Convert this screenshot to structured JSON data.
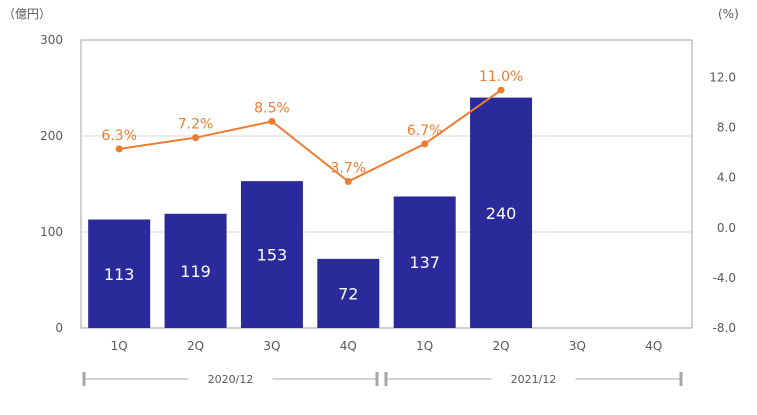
{
  "chart_data": {
    "type": "bar",
    "categories": [
      "1Q",
      "2Q",
      "3Q",
      "4Q",
      "1Q",
      "2Q",
      "3Q",
      "4Q"
    ],
    "groups": [
      {
        "label": "2020/12",
        "categories": [
          "1Q",
          "2Q",
          "3Q",
          "4Q"
        ]
      },
      {
        "label": "2021/12",
        "categories": [
          "1Q",
          "2Q",
          "3Q",
          "4Q"
        ]
      }
    ],
    "y_left": {
      "unit": "（億円）",
      "ylim": [
        0,
        300
      ],
      "ticks": [
        "0",
        "100",
        "200",
        "300"
      ]
    },
    "y_right": {
      "unit": "(%)",
      "ylim": [
        -8,
        15
      ],
      "ticks": [
        "-8.0",
        "-4.0",
        "0.0",
        "4.0",
        "8.0",
        "12.0"
      ]
    },
    "series": [
      {
        "type": "bar",
        "axis": "left",
        "values": [
          113,
          119,
          153,
          72,
          137,
          240,
          null,
          null
        ],
        "labels": [
          "113",
          "119",
          "153",
          "72",
          "137",
          "240",
          "",
          ""
        ]
      },
      {
        "type": "line",
        "axis": "right",
        "values": [
          6.3,
          7.2,
          8.5,
          3.7,
          6.7,
          11.0,
          null,
          null
        ],
        "labels": [
          "6.3%",
          "7.2%",
          "8.5%",
          "3.7%",
          "6.7%",
          "11.0%",
          "",
          ""
        ]
      }
    ],
    "colors": {
      "bar": "#2a2a9a",
      "line": "#ed7d31",
      "grid": "#d9d9d9",
      "axis": "#a6a6a6"
    },
    "grid": true
  }
}
